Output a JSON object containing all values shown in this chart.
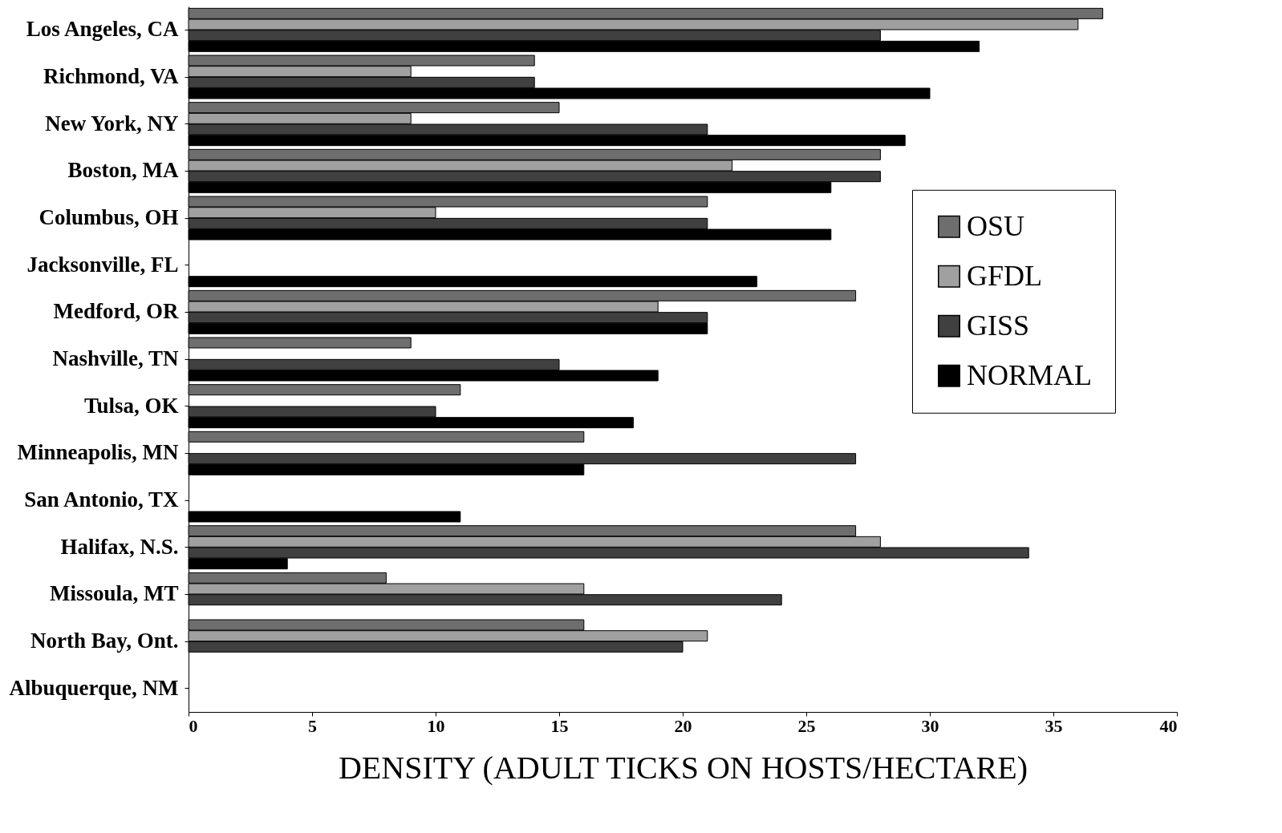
{
  "chart_data": {
    "type": "bar",
    "orientation": "horizontal",
    "xlabel": "DENSITY (ADULT TICKS ON HOSTS/HECTARE)",
    "categories": [
      "Los Angeles, CA",
      "Richmond, VA",
      "New York, NY",
      "Boston, MA",
      "Columbus, OH",
      "Jacksonville, FL",
      "Medford, OR",
      "Nashville, TN",
      "Tulsa, OK",
      "Minneapolis, MN",
      "San Antonio, TX",
      "Halifax, N.S.",
      "Missoula, MT",
      "North Bay, Ont.",
      "Albuquerque, NM"
    ],
    "series": [
      {
        "name": "OSU",
        "color": "#6e6e6e",
        "values": [
          37,
          14,
          15,
          28,
          21,
          null,
          27,
          9,
          11,
          16,
          null,
          27,
          8,
          16,
          null
        ]
      },
      {
        "name": "GFDL",
        "color": "#a0a0a0",
        "values": [
          36,
          9,
          9,
          22,
          10,
          null,
          19,
          null,
          null,
          null,
          null,
          28,
          16,
          21,
          null
        ]
      },
      {
        "name": "GISS",
        "color": "#404040",
        "values": [
          28,
          14,
          21,
          28,
          21,
          null,
          21,
          15,
          10,
          27,
          null,
          34,
          24,
          20,
          null
        ]
      },
      {
        "name": "NORMAL",
        "color": "#000000",
        "values": [
          32,
          30,
          29,
          26,
          26,
          23,
          21,
          19,
          18,
          16,
          11,
          4,
          null,
          null,
          null
        ]
      }
    ],
    "xlim": [
      0,
      40
    ],
    "xticks": [
      0,
      5,
      10,
      15,
      20,
      25,
      30,
      35,
      40
    ],
    "grid": false,
    "legend": "right"
  }
}
